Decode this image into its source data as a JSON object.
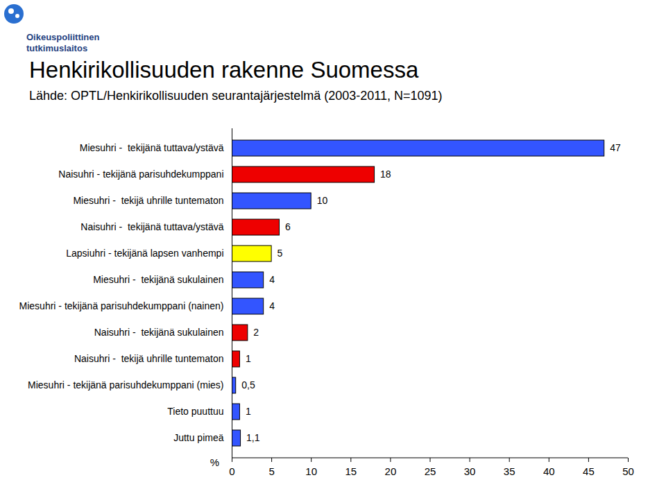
{
  "chart_data": {
    "type": "bar",
    "orientation": "horizontal",
    "title": "Henkirikollisuuden rakenne Suomessa",
    "subtitle": "Lähde: OPTL/Henkirikollisuuden seurantajärjestelmä (2003-2011, N=1091)",
    "annotations": [
      "Oikeuspoliittinen",
      "tutkimuslaitos"
    ],
    "x_label": "%",
    "categories": [
      "Miesuhri -  tekijänä tuttava/ystävä",
      "Naisuhri - tekijänä parisuhdekumppani",
      "Miesuhri -  tekijä uhrille tuntematon",
      "Naisuhri -  tekijänä tuttava/ystävä",
      "Lapsiuhri - tekijänä lapsen vanhempi",
      "Miesuhri -  tekijänä sukulainen",
      "Miesuhri - tekijänä parisuhdekumppani (nainen)",
      "Naisuhri -  tekijänä sukulainen",
      "Naisuhri -  tekijä uhrille tuntematon",
      "Miesuhri - tekijänä parisuhdekumppani (mies)",
      "Tieto puuttuu",
      "Juttu pimeä"
    ],
    "values": [
      47,
      18,
      10,
      6,
      5,
      4,
      4,
      2,
      1,
      0.5,
      1,
      1.1
    ],
    "value_labels": [
      "47",
      "18",
      "10",
      "6",
      "5",
      "4",
      "4",
      "2",
      "1",
      "0,5",
      "1",
      "1,1"
    ],
    "colors": [
      "#3355ff",
      "#ee0000",
      "#3355ff",
      "#ee0000",
      "#ffff00",
      "#3355ff",
      "#3355ff",
      "#ee0000",
      "#ee0000",
      "#3355ff",
      "#3355ff",
      "#3355ff"
    ],
    "data_labels": true,
    "xlim": [
      0,
      50
    ],
    "xticks": [
      0,
      5,
      10,
      15,
      20,
      25,
      30,
      35,
      40,
      45,
      50
    ],
    "grid": false
  }
}
